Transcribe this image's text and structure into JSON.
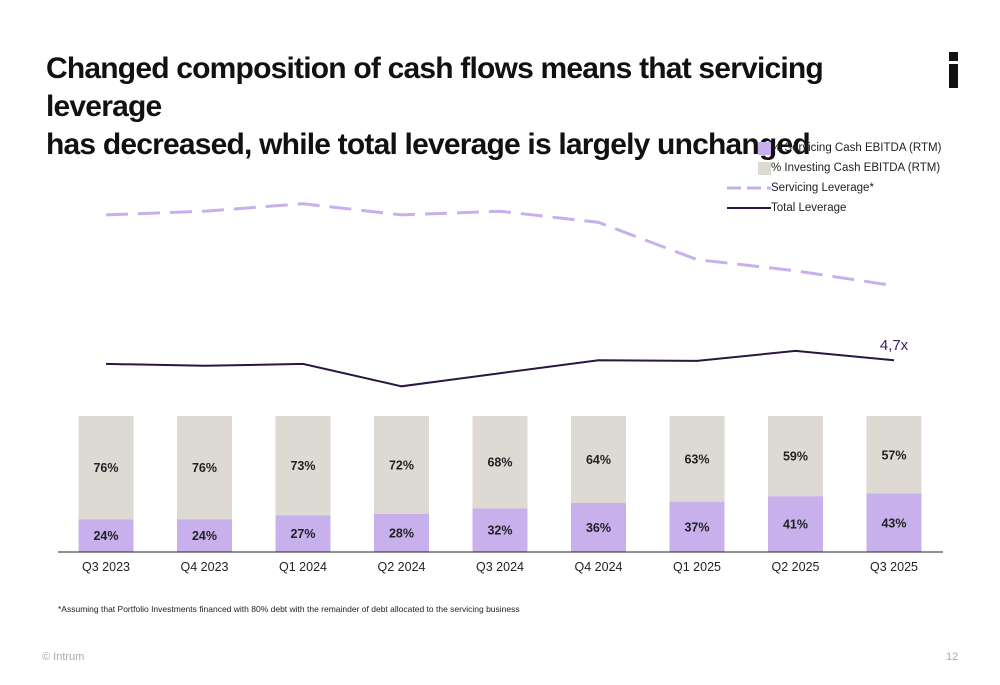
{
  "title": {
    "line1": "Changed composition of cash flows means that servicing leverage",
    "line2": "has decreased, while total leverage is largely unchanged"
  },
  "colors": {
    "servicing": "#c8b0ec",
    "investing": "#dcdad3",
    "servicing_leverage": "#c8b0ec",
    "total_leverage": "#2a1640"
  },
  "legend": [
    {
      "label": "% Servicing Cash EBITDA (RTM)"
    },
    {
      "label": "% Investing Cash EBITDA (RTM)"
    },
    {
      "label": "Servicing Leverage*"
    },
    {
      "label": "Total Leverage"
    }
  ],
  "chart_data": {
    "type": "bar",
    "stacked": true,
    "categories": [
      "Q3 2023",
      "Q4 2023",
      "Q1 2024",
      "Q2 2024",
      "Q3 2024",
      "Q4 2024",
      "Q1 2025",
      "Q2 2025",
      "Q3 2025"
    ],
    "series": [
      {
        "name": "% Servicing Cash EBITDA (RTM)",
        "values": [
          24,
          24,
          27,
          28,
          32,
          36,
          37,
          41,
          43
        ]
      },
      {
        "name": "% Investing Cash EBITDA (RTM)",
        "values": [
          76,
          76,
          73,
          72,
          68,
          64,
          63,
          59,
          57
        ]
      }
    ],
    "lines": [
      {
        "name": "Servicing Leverage*",
        "style": "dashed",
        "values": [
          8.6,
          8.7,
          8.9,
          8.6,
          8.7,
          8.4,
          7.4,
          7.1,
          6.7
        ]
      },
      {
        "name": "Total Leverage",
        "style": "solid",
        "values": [
          4.6,
          4.55,
          4.6,
          4.0,
          4.35,
          4.7,
          4.68,
          4.95,
          4.7
        ]
      }
    ],
    "annotation": {
      "text": "4,7x",
      "category": "Q3 2025"
    },
    "legend_position": "top-right",
    "grid": false
  },
  "footnote": "*Assuming that Portfolio Investments financed with 80% debt with the remainder of debt allocated to the servicing business",
  "footer": {
    "copyright": "© Intrum",
    "page": "12"
  }
}
